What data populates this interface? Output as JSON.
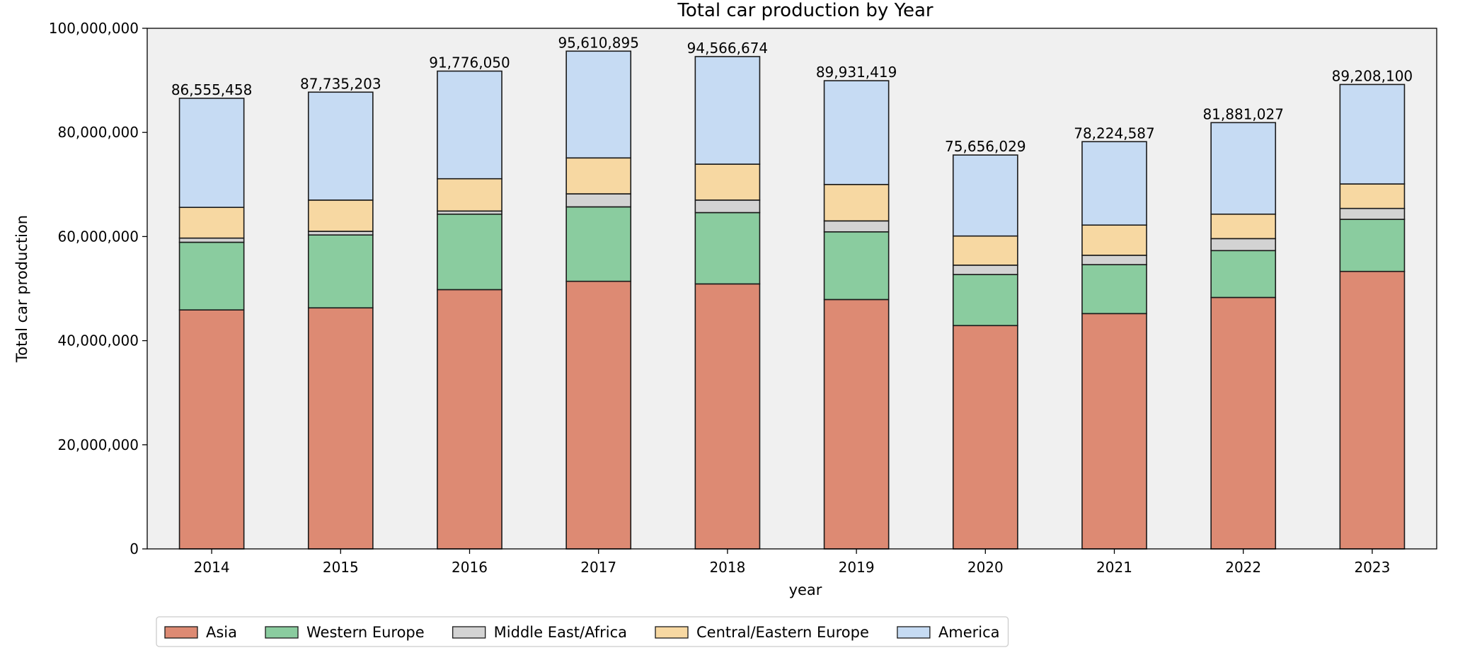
{
  "chart_data": {
    "type": "bar",
    "stacked": true,
    "title": "Total car production by Year",
    "xlabel": "year",
    "ylabel": "Total car production",
    "ylim": [
      0,
      100000000
    ],
    "yticks": [
      0,
      20000000,
      40000000,
      60000000,
      80000000,
      100000000
    ],
    "ytick_labels": [
      "0",
      "20,000,000",
      "40,000,000",
      "60,000,000",
      "80,000,000",
      "100,000,000"
    ],
    "grid": false,
    "legend_position": "bottom-left",
    "categories": [
      "2014",
      "2015",
      "2016",
      "2017",
      "2018",
      "2019",
      "2020",
      "2021",
      "2022",
      "2023"
    ],
    "series": [
      {
        "name": "Asia",
        "color": "#dd8a73",
        "values": [
          45900000,
          46300000,
          49800000,
          51400000,
          50900000,
          47900000,
          42900000,
          45200000,
          48300000,
          53300000
        ]
      },
      {
        "name": "Western Europe",
        "color": "#8acc9f",
        "values": [
          13000000,
          14000000,
          14500000,
          14300000,
          13700000,
          13000000,
          9800000,
          9400000,
          9000000,
          10000000
        ]
      },
      {
        "name": "Middle East/Africa",
        "color": "#d3d3d3",
        "values": [
          800000,
          700000,
          600000,
          2500000,
          2400000,
          2100000,
          1800000,
          1800000,
          2300000,
          2100000
        ]
      },
      {
        "name": "Central/Eastern Europe",
        "color": "#f7d8a2",
        "values": [
          5900000,
          6000000,
          6200000,
          6900000,
          6900000,
          7000000,
          5600000,
          5800000,
          4700000,
          4700000
        ]
      },
      {
        "name": "America",
        "color": "#c6dbf3",
        "values": [
          20955458,
          20735203,
          20676050,
          20510895,
          20666674,
          19931419,
          15556029,
          16024587,
          17581027,
          19108100
        ]
      }
    ],
    "totals": [
      86555458,
      87735203,
      91776050,
      95610895,
      94566674,
      89931419,
      75656029,
      78224587,
      81881027,
      89208100
    ],
    "total_labels": [
      "86,555,458",
      "87,735,203",
      "91,776,050",
      "95,610,895",
      "94,566,674",
      "89,931,419",
      "75,656,029",
      "78,224,587",
      "81,881,027",
      "89,208,100"
    ],
    "plot_background": "#f0f0f0",
    "edge_color": "#1a1a1a"
  }
}
